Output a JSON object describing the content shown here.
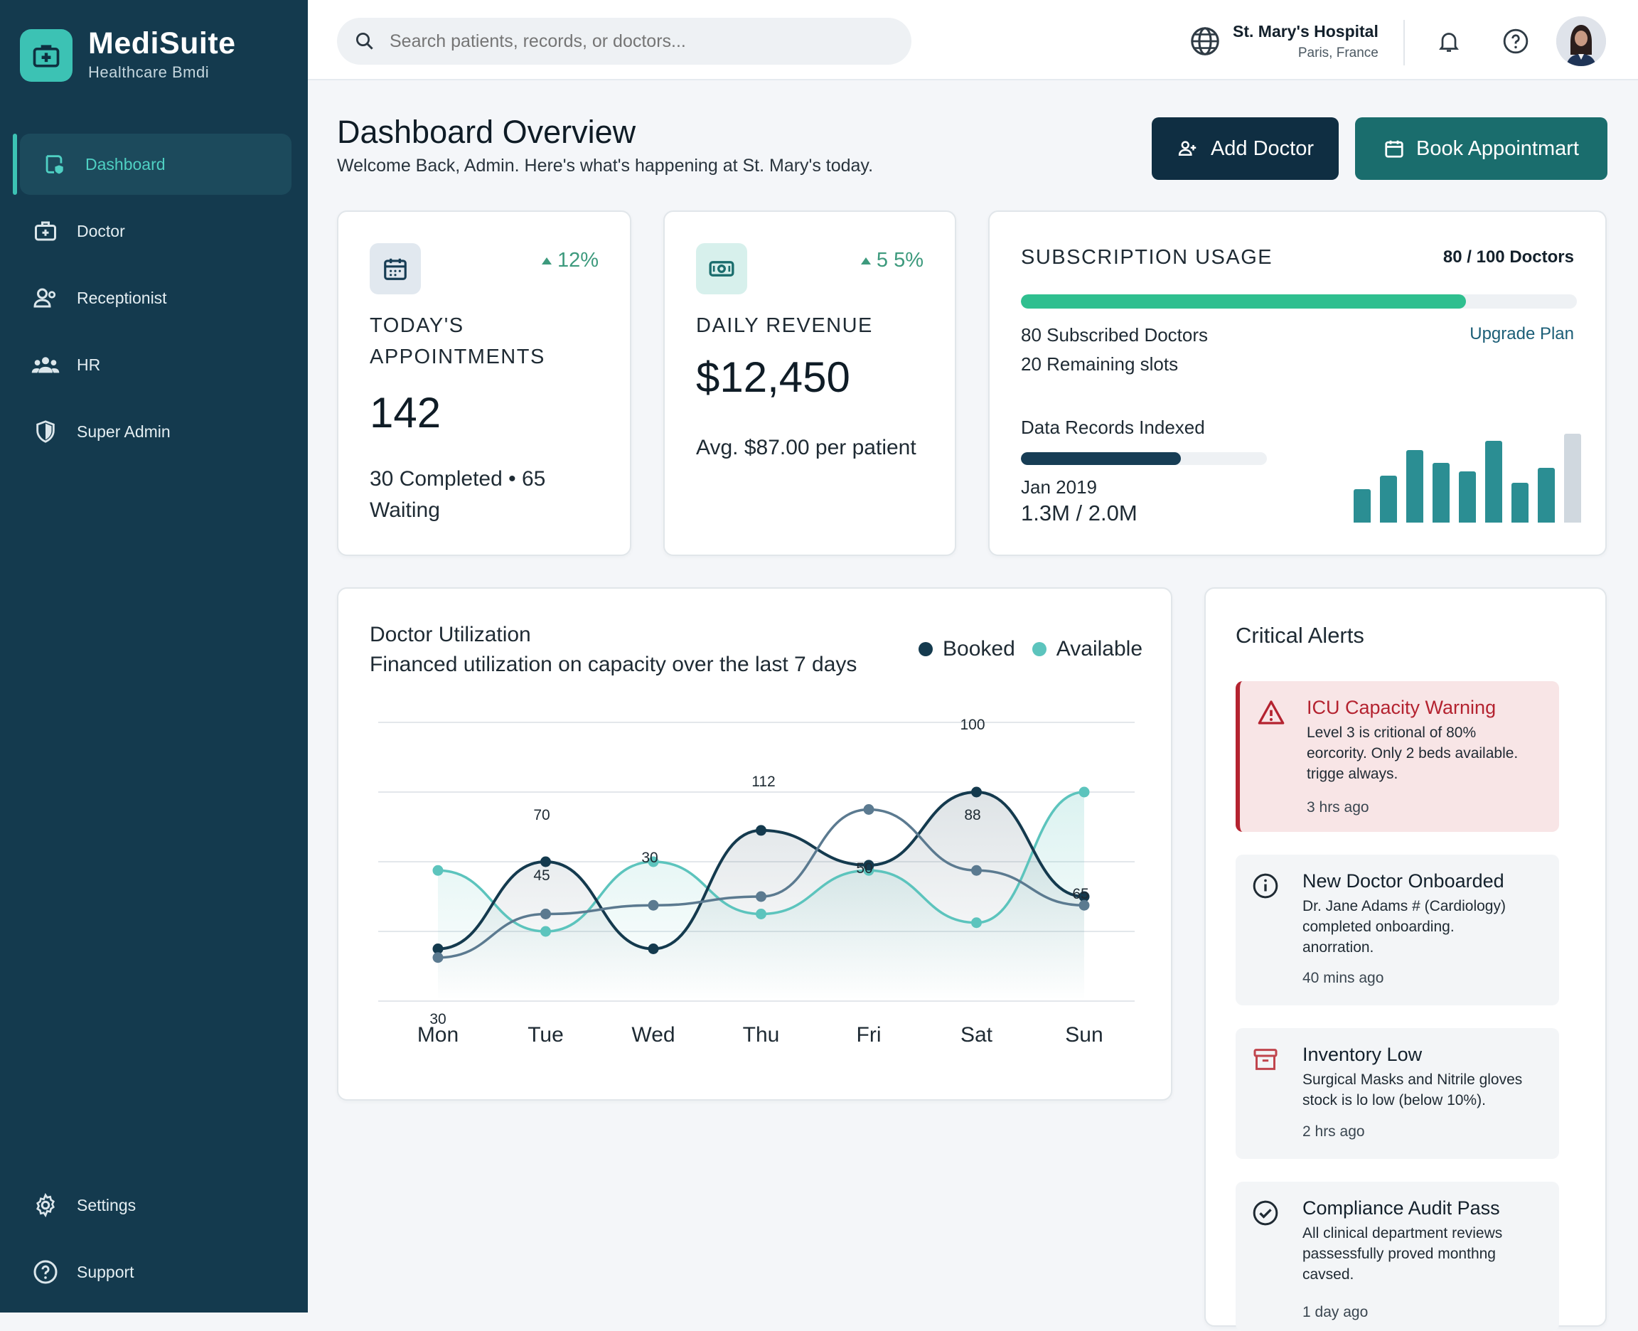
{
  "brand": {
    "name": "MediSuite",
    "subtitle": "Healthcare Bmdi"
  },
  "sidebar": {
    "items": [
      {
        "label": "Dashboard",
        "icon": "hospital-shield-icon",
        "active": true
      },
      {
        "label": "Doctor",
        "icon": "medical-bag-icon"
      },
      {
        "label": "Receptionist",
        "icon": "user-add-icon"
      },
      {
        "label": "HR",
        "icon": "users-group-icon"
      },
      {
        "label": "Super Admin",
        "icon": "shield-icon"
      }
    ],
    "footer": [
      {
        "label": "Settings",
        "icon": "gear-icon"
      },
      {
        "label": "Support",
        "icon": "help-icon"
      }
    ]
  },
  "header": {
    "search_placeholder": "Search patients, records, or doctors...",
    "hospital_name": "St. Mary's Hospital",
    "hospital_location": "Paris, France"
  },
  "page": {
    "title": "Dashboard Overview",
    "subtitle": "Welcome Back, Admin. Here's what's happening at St. Mary's today.",
    "add_doctor": "Add Doctor",
    "book_appointment": "Book Appointmart"
  },
  "appointments": {
    "delta": "12%",
    "label_line1": "TODAY'S",
    "label_line2": "APPOINTMENTS",
    "value": "142",
    "foot_line1": "30 Completed • 65",
    "foot_line2": "Waiting"
  },
  "revenue": {
    "delta": "5 5%",
    "label": "DAILY REVENUE",
    "value": "$12,450",
    "foot": "Avg. $87.00 per patient"
  },
  "subscription": {
    "title": "SUBSCRIPTION USAGE",
    "count": "80 / 100 Doctors",
    "usage_fraction": 0.8,
    "subscribed": "80 Subscribed Doctors",
    "remaining": "20 Remaining slots",
    "upgrade": "Upgrade Plan",
    "records_title": "Data Records Indexed",
    "records_fraction": 0.65,
    "records_date": "Jan 2019",
    "records_value": "1.3M / 2.0M",
    "mini_bars": [
      0.38,
      0.53,
      0.82,
      0.67,
      0.58,
      0.92,
      0.45,
      0.62,
      1.0
    ],
    "colors": {
      "accent": "#2fbf8f",
      "dark": "#173d55",
      "bars": "#2b8e93"
    }
  },
  "chart_data": {
    "type": "line",
    "title": "Doctor Utilization",
    "subtitle": "Financed utilization on capacity over the last 7 days",
    "categories": [
      "Mon",
      "Tue",
      "Wed",
      "Thu",
      "Fri",
      "Sat",
      "Sun"
    ],
    "ylim": [
      0,
      160
    ],
    "grid": true,
    "legend": "top-right",
    "legend_labels": [
      "Booked",
      "Available"
    ],
    "series": [
      {
        "name": "Booked",
        "color": "#143a4e",
        "values": [
          30,
          80,
          30,
          98,
          78,
          120,
          60
        ]
      },
      {
        "name": "",
        "color": "#5b7a90",
        "values": [
          25,
          50,
          55,
          60,
          110,
          75,
          55
        ]
      },
      {
        "name": "Available",
        "color": "#5cc4bd",
        "values": [
          75,
          40,
          80,
          50,
          75,
          45,
          120
        ]
      }
    ],
    "annotations": [
      "30",
      "70",
      "45",
      "30",
      "112",
      "50",
      "100",
      "88",
      "65"
    ]
  },
  "alerts": {
    "title": "Critical Alerts",
    "items": [
      {
        "title": "ICU Capacity Warning",
        "line1": "Level 3 is critional of 80%",
        "line2": "eorcority. Only 2 beds available.",
        "line3": "trigge always.",
        "time": "3 hrs ago",
        "icon": "warning-icon"
      },
      {
        "title": "New Doctor Onboarded",
        "line1": "Dr. Jane Adams # (Cardiology)",
        "line2": "completed onboarding.",
        "line3": "anorration.",
        "time": "40 mins ago",
        "icon": "info-icon"
      },
      {
        "title": "Inventory Low",
        "line1": "Surgical Masks and Nitrile gloves",
        "line2": "stock is lo low (below 10%).",
        "time": "2 hrs ago",
        "icon": "archive-box-icon"
      },
      {
        "title": "Compliance Audit Pass",
        "line1": "All clinical department reviews",
        "line2": "passessfully proved monthng",
        "line3": "cavsed.",
        "time": "1 day ago",
        "icon": "check-circle-icon"
      }
    ]
  }
}
